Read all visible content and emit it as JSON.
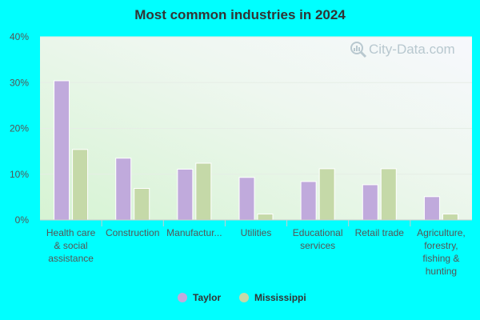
{
  "chart_data": {
    "type": "bar",
    "title": "Most common industries in 2024",
    "categories": [
      [
        "Health care",
        "& social",
        "assistance"
      ],
      [
        "Construction"
      ],
      [
        "Manufactur..."
      ],
      [
        "Utilities"
      ],
      [
        "Educational",
        "services"
      ],
      [
        "Retail trade"
      ],
      [
        "Agriculture,",
        "forestry,",
        "fishing &",
        "hunting"
      ]
    ],
    "series": [
      {
        "name": "Taylor",
        "color": "#c0aadc",
        "values": [
          30.4,
          13.5,
          11.1,
          9.3,
          8.4,
          7.7,
          5.1
        ]
      },
      {
        "name": "Mississippi",
        "color": "#c5d9a8",
        "values": [
          15.4,
          6.9,
          12.4,
          1.3,
          11.2,
          11.2,
          1.3
        ]
      }
    ],
    "ylim": [
      0,
      40
    ],
    "yticks": [
      0,
      10,
      20,
      30,
      40
    ],
    "ytick_format": "%",
    "xlabel": "",
    "ylabel": "",
    "grid": true,
    "legend_position": "bottom-center"
  },
  "watermark": {
    "text": "City-Data.com",
    "icon": "magnifier-chart-icon"
  }
}
